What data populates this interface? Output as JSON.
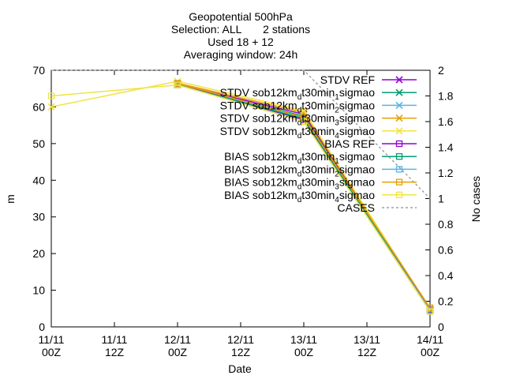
{
  "chart_data": {
    "type": "line",
    "title_lines": [
      "Geopotential 500hPa",
      "Selection: ALL       2 stations",
      "Used 18 + 12",
      "Averaging window: 24h"
    ],
    "xlabel": "Date",
    "ylabel": "m",
    "y2label": "No cases",
    "xlim": [
      0,
      72
    ],
    "ylim": [
      0,
      70
    ],
    "y2lim": [
      0,
      2
    ],
    "x_ticks": [
      {
        "x": 0,
        "line1": "11/11",
        "line2": "00Z"
      },
      {
        "x": 12,
        "line1": "11/11",
        "line2": "12Z"
      },
      {
        "x": 24,
        "line1": "12/11",
        "line2": "00Z"
      },
      {
        "x": 36,
        "line1": "12/11",
        "line2": "12Z"
      },
      {
        "x": 48,
        "line1": "13/11",
        "line2": "00Z"
      },
      {
        "x": 60,
        "line1": "13/11",
        "line2": "12Z"
      },
      {
        "x": 72,
        "line1": "14/11",
        "line2": "00Z"
      }
    ],
    "y_ticks": [
      "0",
      "10",
      "20",
      "30",
      "40",
      "50",
      "60",
      "70"
    ],
    "y2_ticks": [
      "0",
      "0.2",
      "0.4",
      "0.6",
      "0.8",
      "1",
      "1.2",
      "1.4",
      "1.6",
      "1.8",
      "2"
    ],
    "legend_position": "top-right",
    "series": [
      {
        "name": "STDV REF",
        "legend": {
          "pre": "STDV REF",
          "sub": "",
          "mid": "",
          "sub2": "",
          "post": ""
        },
        "color": "#9400d3",
        "marker": "x",
        "axis": "y",
        "x": [
          24,
          48,
          72
        ],
        "values": [
          66.2,
          58.0,
          4.8
        ]
      },
      {
        "name": "STDV sob12km_dt30min_1sigmao",
        "legend": {
          "pre": "STDV sob12km",
          "sub": "d",
          "mid": "t30min",
          "sub2": "1",
          "post": "sigmao"
        },
        "color": "#009e73",
        "marker": "x",
        "axis": "y",
        "x": [
          24,
          48,
          72
        ],
        "values": [
          66.0,
          57.5,
          4.6
        ]
      },
      {
        "name": "STDV sob12km_dt30min_2sigmao",
        "legend": {
          "pre": "STDV sob12km",
          "sub": "d",
          "mid": "t30min",
          "sub2": "2",
          "post": "sigmao"
        },
        "color": "#56b4e9",
        "marker": "x",
        "axis": "y",
        "x": [
          24,
          48,
          72
        ],
        "values": [
          66.3,
          57.0,
          4.7
        ]
      },
      {
        "name": "STDV sob12km_dt30min_3sigmao",
        "legend": {
          "pre": "STDV sob12km",
          "sub": "d",
          "mid": "t30min",
          "sub2": "3",
          "post": "sigmao"
        },
        "color": "#e69f00",
        "marker": "x",
        "axis": "y",
        "x": [
          24,
          48,
          72
        ],
        "values": [
          66.5,
          58.5,
          5.0
        ]
      },
      {
        "name": "STDV sob12km_dt30min_4sigmao",
        "legend": {
          "pre": "STDV sob12km",
          "sub": "d",
          "mid": "t30min",
          "sub2": "4",
          "post": "sigmao"
        },
        "color": "#f0e442",
        "marker": "x",
        "axis": "y",
        "x": [
          0,
          24,
          48,
          72
        ],
        "values": [
          60.0,
          67.0,
          59.0,
          4.8
        ]
      },
      {
        "name": "BIAS REF",
        "legend": {
          "pre": "BIAS REF",
          "sub": "",
          "mid": "",
          "sub2": "",
          "post": ""
        },
        "color": "#9400d3",
        "marker": "square",
        "axis": "y",
        "x": [
          24,
          48,
          72
        ],
        "values": [
          66.2,
          56.5,
          4.6
        ]
      },
      {
        "name": "BIAS sob12km_dt30min_1sigmao",
        "legend": {
          "pre": "BIAS sob12km",
          "sub": "d",
          "mid": "t30min",
          "sub2": "1",
          "post": "sigmao"
        },
        "color": "#009e73",
        "marker": "square",
        "axis": "y",
        "x": [
          24,
          48,
          72
        ],
        "values": [
          66.0,
          56.8,
          4.4
        ]
      },
      {
        "name": "BIAS sob12km_dt30min_2sigmao",
        "legend": {
          "pre": "BIAS sob12km",
          "sub": "d",
          "mid": "t30min",
          "sub2": "2",
          "post": "sigmao"
        },
        "color": "#56b4e9",
        "marker": "square",
        "axis": "y",
        "x": [
          24,
          48,
          72
        ],
        "values": [
          66.1,
          56.0,
          4.5
        ]
      },
      {
        "name": "BIAS sob12km_dt30min_3sigmao",
        "legend": {
          "pre": "BIAS sob12km",
          "sub": "d",
          "mid": "t30min",
          "sub2": "3",
          "post": "sigmao"
        },
        "color": "#e69f00",
        "marker": "square",
        "axis": "y",
        "x": [
          24,
          48,
          72
        ],
        "values": [
          66.4,
          57.2,
          5.2
        ]
      },
      {
        "name": "BIAS sob12km_dt30min_4sigmao",
        "legend": {
          "pre": "BIAS sob12km",
          "sub": "d",
          "mid": "t30min",
          "sub2": "4",
          "post": "sigmao"
        },
        "color": "#f0e442",
        "marker": "square",
        "axis": "y",
        "x": [
          0,
          24,
          48,
          72
        ],
        "values": [
          63.0,
          66.0,
          56.0,
          4.2
        ]
      },
      {
        "name": "CASES",
        "legend": {
          "pre": "CASES",
          "sub": "",
          "mid": "",
          "sub2": "",
          "post": ""
        },
        "color": "#a0a0a0",
        "marker": "none",
        "dash": true,
        "axis": "y2",
        "x": [
          0,
          24,
          48,
          72
        ],
        "values": [
          2,
          2,
          2,
          1
        ]
      }
    ]
  }
}
